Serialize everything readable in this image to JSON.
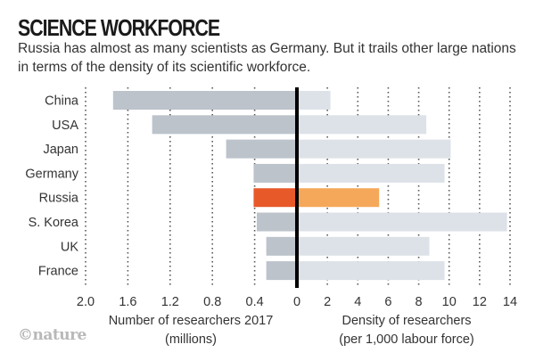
{
  "header": {
    "title": "SCIENCE WORKFORCE",
    "subtitle": "Russia has almost as many scientists as Germany. But it trails other large nations in terms of the density of its scientific workforce."
  },
  "footer": {
    "logo": "©nature"
  },
  "colors": {
    "bar_left": "#bcc3cb",
    "bar_right": "#dde2e8",
    "highlight_left": "#e8592a",
    "highlight_right": "#f5a85a",
    "axis": "#000000",
    "grid": "#555555"
  },
  "chart_data": {
    "type": "bar",
    "orientation": "horizontal-butterfly",
    "title": "SCIENCE WORKFORCE",
    "categories": [
      "China",
      "USA",
      "Japan",
      "Germany",
      "Russia",
      "S. Korea",
      "UK",
      "France"
    ],
    "highlight": "Russia",
    "left": {
      "name": "Number of researchers 2017",
      "xlabel": [
        "Number of researchers 2017",
        "(millions)"
      ],
      "values": [
        1.74,
        1.37,
        0.67,
        0.41,
        0.41,
        0.38,
        0.29,
        0.29
      ],
      "xlim": [
        0,
        2.0
      ],
      "ticks": [
        2.0,
        1.6,
        1.2,
        0.8,
        0.4,
        0
      ],
      "tick_labels": [
        "2.0",
        "1.6",
        "1.2",
        "0.8",
        "0.4",
        "0"
      ],
      "direction": "leftward"
    },
    "right": {
      "name": "Density of researchers",
      "xlabel": [
        "Density of researchers",
        "(per 1,000 labour force)"
      ],
      "values": [
        2.2,
        8.5,
        10.1,
        9.7,
        5.4,
        13.8,
        8.7,
        9.7
      ],
      "xlim": [
        0,
        14
      ],
      "ticks": [
        2,
        4,
        6,
        8,
        10,
        12,
        14
      ],
      "tick_labels": [
        "2",
        "4",
        "6",
        "8",
        "10",
        "12",
        "14"
      ],
      "direction": "rightward"
    },
    "grid": "dotted vertical"
  }
}
